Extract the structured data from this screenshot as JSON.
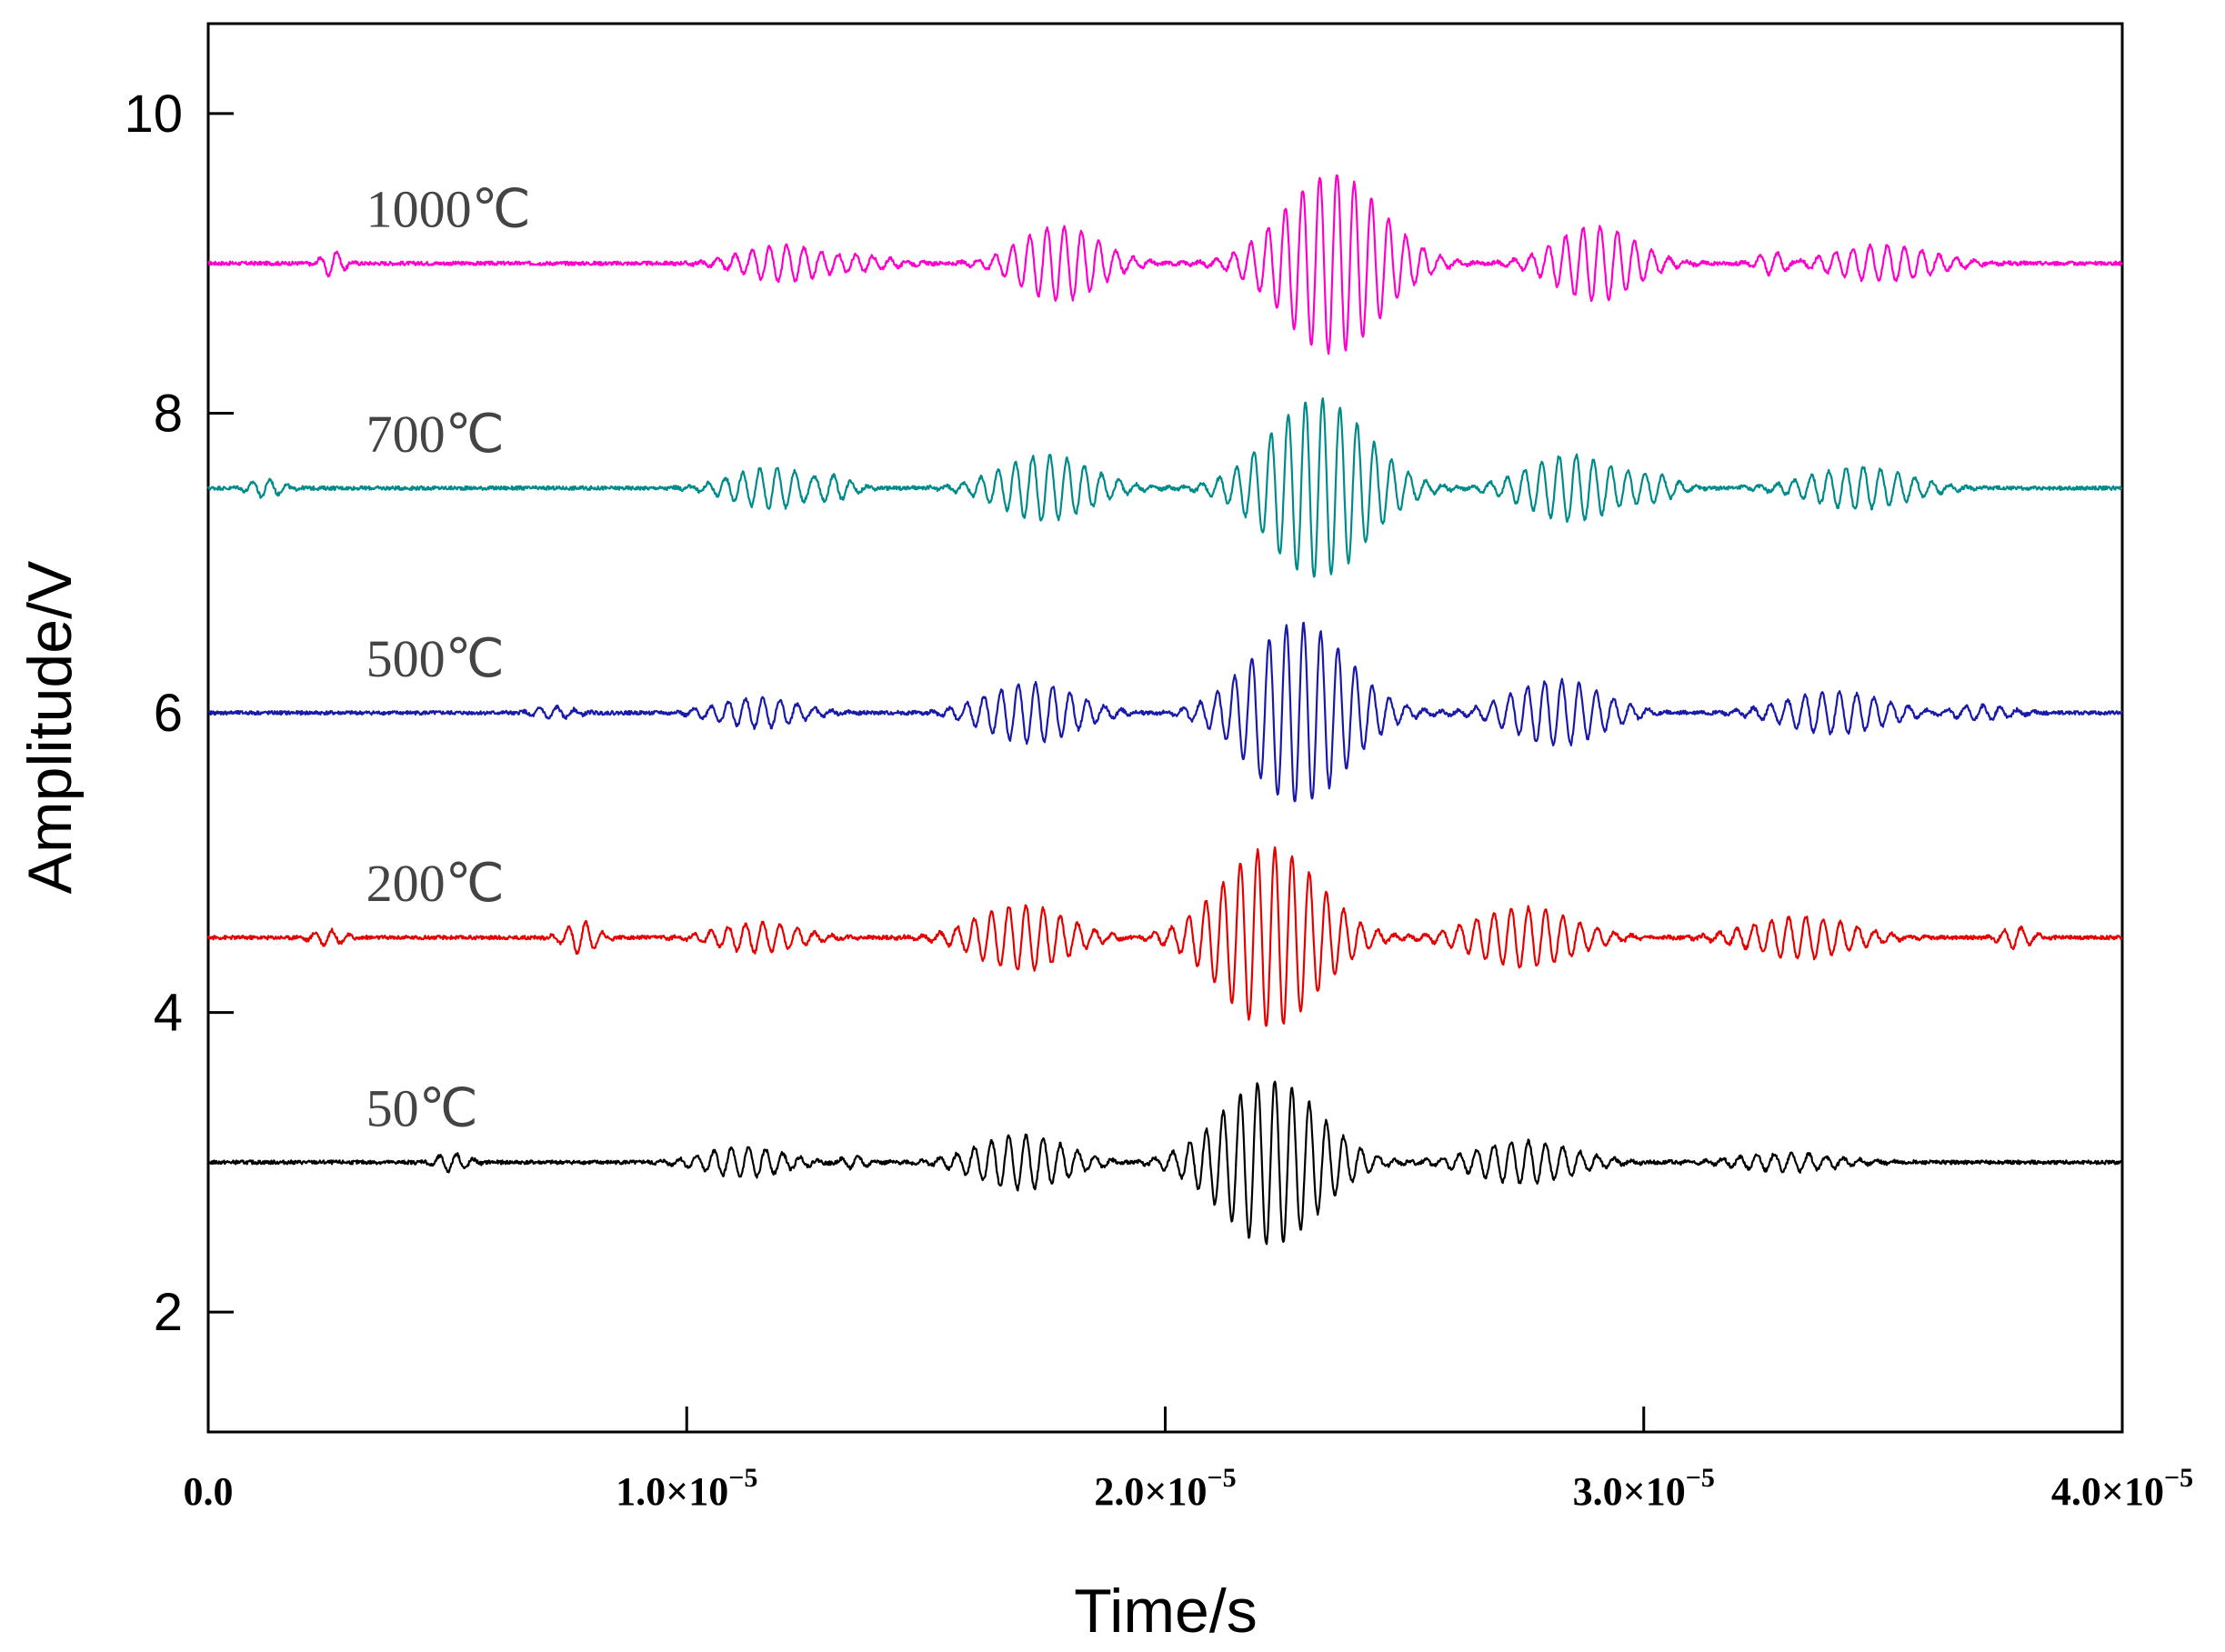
{
  "chart_data": {
    "type": "line",
    "title": "",
    "xlabel": "Time/s",
    "ylabel": "Amplitude/V",
    "xlim": [
      0,
      4e-05
    ],
    "ylim": [
      1.2,
      10.6
    ],
    "grid": false,
    "legend": "none",
    "y_ticks": [
      2,
      4,
      6,
      8,
      10
    ],
    "x_ticks": [
      {
        "value": 0.0,
        "mantissa": "0.0",
        "exponent": ""
      },
      {
        "value": 1e-05,
        "mantissa": "1.0×10",
        "exponent": "−5"
      },
      {
        "value": 2e-05,
        "mantissa": "2.0×10",
        "exponent": "−5"
      },
      {
        "value": 3e-05,
        "mantissa": "3.0×10",
        "exponent": "−5"
      },
      {
        "value": 4e-05,
        "mantissa": "4.0×10",
        "exponent": "−5"
      }
    ],
    "series": [
      {
        "name": "1000℃",
        "color": "#ff00cc",
        "baseline": 9.0,
        "packets": [
          {
            "t": 2.6e-06,
            "amp": 0.09,
            "width": 2e-07
          },
          {
            "t": 1.2e-05,
            "amp": 0.12,
            "width": 8e-07
          },
          {
            "t": 1.38e-05,
            "amp": 0.04,
            "width": 6e-07
          },
          {
            "t": 1.78e-05,
            "amp": 0.25,
            "width": 8e-07
          },
          {
            "t": 2.35e-05,
            "amp": 0.6,
            "width": 1e-06
          },
          {
            "t": 2.9e-05,
            "amp": 0.25,
            "width": 8e-07
          },
          {
            "t": 3.27e-05,
            "amp": 0.08,
            "width": 3e-07
          },
          {
            "t": 3.5e-05,
            "amp": 0.12,
            "width": 1e-06
          }
        ]
      },
      {
        "name": "700℃",
        "color": "#008b8b",
        "baseline": 7.5,
        "packets": [
          {
            "t": 1.2e-06,
            "amp": 0.06,
            "width": 3e-07
          },
          {
            "t": 1.18e-05,
            "amp": 0.14,
            "width": 8e-07
          },
          {
            "t": 1.3e-05,
            "amp": 0.1,
            "width": 4e-07
          },
          {
            "t": 1.75e-05,
            "amp": 0.22,
            "width": 9e-07
          },
          {
            "t": 2.32e-05,
            "amp": 0.6,
            "width": 1e-06
          },
          {
            "t": 2.85e-05,
            "amp": 0.22,
            "width": 9e-07
          },
          {
            "t": 3.03e-05,
            "amp": 0.06,
            "width": 4e-07
          },
          {
            "t": 3.45e-05,
            "amp": 0.14,
            "width": 1e-06
          }
        ]
      },
      {
        "name": "500℃",
        "color": "#1a1aaa",
        "baseline": 6.0,
        "packets": [
          {
            "t": 7.2e-06,
            "amp": 0.04,
            "width": 4e-07
          },
          {
            "t": 1.15e-05,
            "amp": 0.1,
            "width": 8e-07
          },
          {
            "t": 1.72e-05,
            "amp": 0.2,
            "width": 9e-07
          },
          {
            "t": 2.28e-05,
            "amp": 0.6,
            "width": 1e-06
          },
          {
            "t": 2.82e-05,
            "amp": 0.22,
            "width": 9e-07
          },
          {
            "t": 3.4e-05,
            "amp": 0.14,
            "width": 1e-06
          },
          {
            "t": 3.7e-05,
            "amp": 0.05,
            "width": 6e-07
          }
        ]
      },
      {
        "name": "200℃",
        "color": "#e60000",
        "baseline": 4.5,
        "packets": [
          {
            "t": 2.5e-06,
            "amp": 0.05,
            "width": 3e-07
          },
          {
            "t": 7.8e-06,
            "amp": 0.11,
            "width": 3e-07
          },
          {
            "t": 1.15e-05,
            "amp": 0.1,
            "width": 8e-07
          },
          {
            "t": 1.7e-05,
            "amp": 0.22,
            "width": 9e-07
          },
          {
            "t": 2.22e-05,
            "amp": 0.6,
            "width": 1e-06
          },
          {
            "t": 2.75e-05,
            "amp": 0.2,
            "width": 1e-06
          },
          {
            "t": 3.33e-05,
            "amp": 0.14,
            "width": 1e-06
          },
          {
            "t": 3.78e-05,
            "amp": 0.07,
            "width": 3e-07
          }
        ]
      },
      {
        "name": "50℃",
        "color": "#000000",
        "baseline": 3.0,
        "packets": [
          {
            "t": 5.1e-06,
            "amp": 0.06,
            "width": 3e-07
          },
          {
            "t": 1.12e-05,
            "amp": 0.1,
            "width": 8e-07
          },
          {
            "t": 1.35e-05,
            "amp": 0.04,
            "width": 3e-07
          },
          {
            "t": 1.7e-05,
            "amp": 0.18,
            "width": 9e-07
          },
          {
            "t": 2.05e-05,
            "amp": 0.06,
            "width": 3e-07
          },
          {
            "t": 2.22e-05,
            "amp": 0.55,
            "width": 1e-06
          },
          {
            "t": 2.75e-05,
            "amp": 0.14,
            "width": 1e-06
          },
          {
            "t": 3.3e-05,
            "amp": 0.06,
            "width": 1e-06
          }
        ]
      }
    ]
  }
}
